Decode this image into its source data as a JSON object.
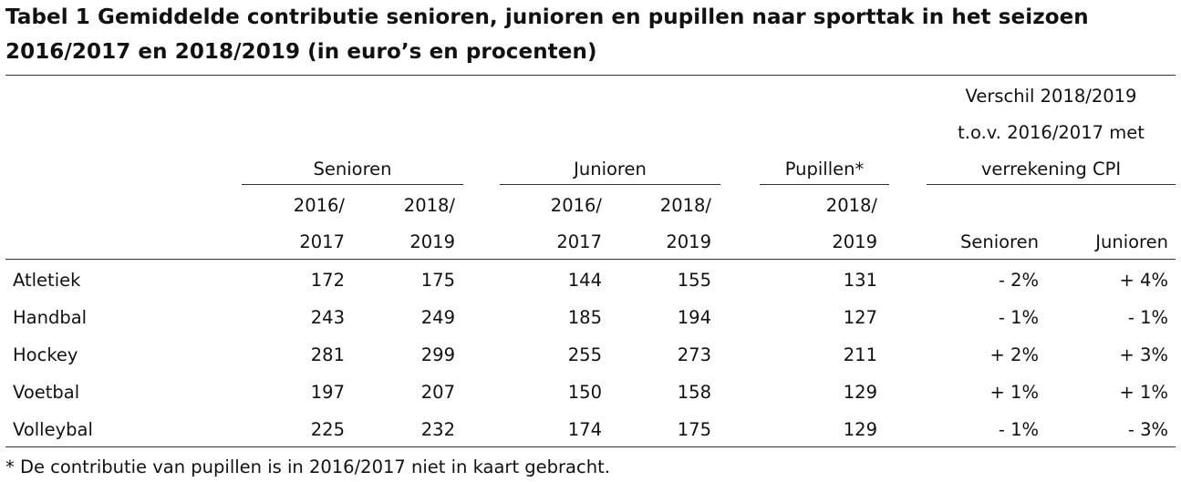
{
  "chart_data": {
    "type": "table",
    "title": "Tabel 1 Gemiddelde contributie senioren, junioren en pupillen naar sporttak in het seizoen 2016/2017 en 2018/2019 (in euro’s en procenten)",
    "groups": [
      {
        "label": "Senioren"
      },
      {
        "label": "Junioren"
      },
      {
        "label": "Pupillen*"
      },
      {
        "label_lines": [
          "Verschil 2018/2019",
          "t.o.v. 2016/2017 met",
          "verrekening CPI"
        ]
      }
    ],
    "columns": [
      {
        "line1": "2016/",
        "line2": "2017"
      },
      {
        "line1": "2018/",
        "line2": "2019"
      },
      {
        "line1": "2016/",
        "line2": "2017"
      },
      {
        "line1": "2018/",
        "line2": "2019"
      },
      {
        "line1": "2018/",
        "line2": "2019"
      },
      {
        "line1": "",
        "line2": "Senioren"
      },
      {
        "line1": "",
        "line2": "Junioren"
      }
    ],
    "rows": [
      {
        "sport": "Atletiek",
        "values": [
          "172",
          "175",
          "144",
          "155",
          "131",
          "- 2%",
          "+ 4%"
        ]
      },
      {
        "sport": "Handbal",
        "values": [
          "243",
          "249",
          "185",
          "194",
          "127",
          "- 1%",
          "- 1%"
        ]
      },
      {
        "sport": "Hockey",
        "values": [
          "281",
          "299",
          "255",
          "273",
          "211",
          "+ 2%",
          "+ 3%"
        ]
      },
      {
        "sport": "Voetbal",
        "values": [
          "197",
          "207",
          "150",
          "158",
          "129",
          "+ 1%",
          "+ 1%"
        ]
      },
      {
        "sport": "Volleybal",
        "values": [
          "225",
          "232",
          "174",
          "175",
          "129",
          "- 1%",
          "- 3%"
        ]
      }
    ],
    "footnote": "* De contributie van pupillen is in 2016/2017 niet in kaart gebracht."
  }
}
